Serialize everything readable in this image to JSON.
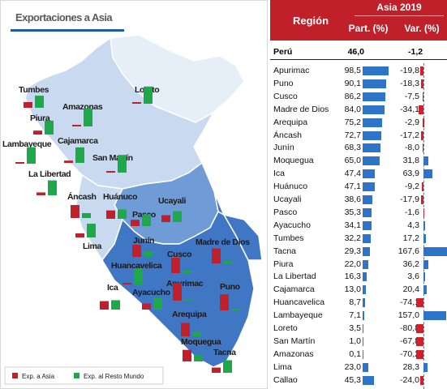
{
  "map": {
    "title": "Exportaciones a Asia",
    "legend": {
      "asia": "Exp. a Asia",
      "rest": "Exp. al Resto Mundo"
    },
    "colors": {
      "asia": "#c0202a",
      "rest": "#1ea84a",
      "dark": "#3f77c4",
      "mid": "#6f9bd6",
      "light": "#c9d9ef",
      "pale": "#e6eef8"
    },
    "labels": {
      "tumbes": "Tumbes",
      "loreto": "Loreto",
      "amazonas": "Amazonas",
      "piura": "Piura",
      "lambayeque": "Lambayeque",
      "cajamarca": "Cajamarca",
      "san_martin": "San Martín",
      "la_libertad": "La Libertad",
      "ancash": "Áncash",
      "huanuco": "Huánuco",
      "ucayali": "Ucayali",
      "pasco": "Pasco",
      "lima": "Lima",
      "junin": "Junín",
      "madre_de_dios": "Madre de Dios",
      "cusco": "Cusco",
      "huancavelica": "Huancavelica",
      "apurimac": "Apurimac",
      "ica": "Ica",
      "ayacucho": "Ayacucho",
      "puno": "Puno",
      "arequipa": "Arequipa",
      "moquegua": "Moquegua",
      "tacna": "Tacna"
    }
  },
  "table": {
    "header": {
      "region": "Región",
      "year": "Asia 2019",
      "part": "Part. (%)",
      "var": "Var. (%)"
    },
    "peru": {
      "name": "Perú",
      "part": "46,0",
      "var": "-1,2"
    }
  },
  "chart_data": {
    "type": "table",
    "columns": [
      "Región",
      "Part. (%)",
      "Var. (%)"
    ],
    "rows": [
      {
        "name": "Apurimac",
        "part": 98.5,
        "part_label": "98,5",
        "var": -19.8,
        "var_label": "-19,8"
      },
      {
        "name": "Puno",
        "part": 90.1,
        "part_label": "90,1",
        "var": -18.3,
        "var_label": "-18,3"
      },
      {
        "name": "Cusco",
        "part": 86.2,
        "part_label": "86,2",
        "var": -7.5,
        "var_label": "-7,5"
      },
      {
        "name": "Madre de Dios",
        "part": 84.0,
        "part_label": "84,0",
        "var": -34.1,
        "var_label": "-34,1"
      },
      {
        "name": "Arequipa",
        "part": 75.2,
        "part_label": "75,2",
        "var": -2.9,
        "var_label": "-2,9"
      },
      {
        "name": "Áncash",
        "part": 72.7,
        "part_label": "72,7",
        "var": -17.2,
        "var_label": "-17,2"
      },
      {
        "name": "Junín",
        "part": 68.3,
        "part_label": "68,3",
        "var": -8.0,
        "var_label": "-8,0"
      },
      {
        "name": "Moquegua",
        "part": 65.0,
        "part_label": "65,0",
        "var": 31.8,
        "var_label": "31,8"
      },
      {
        "name": "Ica",
        "part": 47.4,
        "part_label": "47,4",
        "var": 63.9,
        "var_label": "63,9"
      },
      {
        "name": "Huánuco",
        "part": 47.1,
        "part_label": "47,1",
        "var": -9.2,
        "var_label": "-9,2"
      },
      {
        "name": "Ucayali",
        "part": 38.6,
        "part_label": "38,6",
        "var": -17.9,
        "var_label": "-17,9"
      },
      {
        "name": "Pasco",
        "part": 35.3,
        "part_label": "35,3",
        "var": -1.6,
        "var_label": "-1,6"
      },
      {
        "name": "Ayacucho",
        "part": 34.1,
        "part_label": "34,1",
        "var": 4.3,
        "var_label": "4,3"
      },
      {
        "name": "Tumbes",
        "part": 32.2,
        "part_label": "32,2",
        "var": 17.2,
        "var_label": "17,2"
      },
      {
        "name": "Tacna",
        "part": 29.3,
        "part_label": "29,3",
        "var": 167.6,
        "var_label": "167,6"
      },
      {
        "name": "Piura",
        "part": 22.0,
        "part_label": "22,0",
        "var": 36.2,
        "var_label": "36,2"
      },
      {
        "name": "La Libertad",
        "part": 16.3,
        "part_label": "16,3",
        "var": 3.6,
        "var_label": "3,6"
      },
      {
        "name": "Cajamarca",
        "part": 13.0,
        "part_label": "13,0",
        "var": 20.4,
        "var_label": "20,4"
      },
      {
        "name": "Huancavelica",
        "part": 8.7,
        "part_label": "8,7",
        "var": -74.1,
        "var_label": "-74,1"
      },
      {
        "name": "Lambayeque",
        "part": 7.1,
        "part_label": "7,1",
        "var": 157.0,
        "var_label": "157,0"
      },
      {
        "name": "Loreto",
        "part": 3.5,
        "part_label": "3,5",
        "var": -80.8,
        "var_label": "-80,8"
      },
      {
        "name": "San Martín",
        "part": 1.0,
        "part_label": "1,0",
        "var": -67.8,
        "var_label": "-67,8"
      },
      {
        "name": "Amazonas",
        "part": 0.1,
        "part_label": "0,1",
        "var": -70.2,
        "var_label": "-70,2"
      },
      {
        "name": "Lima",
        "part": 23.0,
        "part_label": "23,0",
        "var": 28.3,
        "var_label": "28,3"
      },
      {
        "name": "Callao",
        "part": 45.3,
        "part_label": "45,3",
        "var": -24.0,
        "var_label": "-24,0"
      }
    ],
    "colors": {
      "part_bar": "#2e75c9",
      "var_positive": "#2e75c9",
      "var_negative": "#d41f2b"
    }
  }
}
